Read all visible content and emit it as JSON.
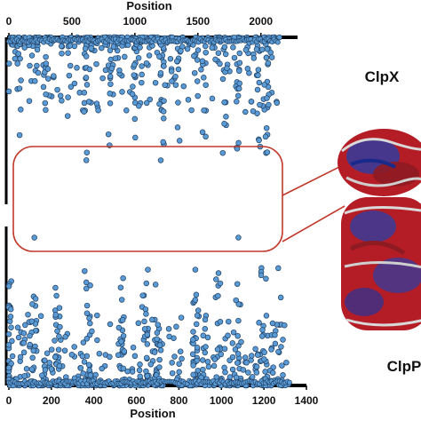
{
  "chart_data": [
    {
      "type": "scatter",
      "name_label": "ClpX",
      "xlabel": "Position",
      "xlim": [
        0,
        2150
      ],
      "xticks": [
        0,
        500,
        1000,
        1500,
        2000
      ],
      "ylim": [
        0,
        1
      ],
      "x_extent": [
        0,
        2150
      ],
      "point_color": "#5b9bd5",
      "n_points": 520,
      "seed": 11,
      "column_positions": [
        80,
        220,
        300,
        480,
        610,
        800,
        1000,
        1220,
        1350,
        1550,
        1710,
        1820,
        1980,
        2050
      ],
      "isolated_points": [
        {
          "x": 410,
          "y": 0.35
        },
        {
          "x": 1820,
          "y": 0.35
        }
      ]
    },
    {
      "type": "scatter",
      "name_label": "ClpP",
      "xlabel": "Position",
      "xlim": [
        0,
        1400
      ],
      "xticks": [
        0,
        200,
        400,
        600,
        800,
        1000,
        1200,
        1400
      ],
      "ylim": [
        0,
        1
      ],
      "x_extent": [
        0,
        1320
      ],
      "point_color": "#5b9bd5",
      "n_points": 620,
      "seed": 23,
      "column_positions": [
        0,
        120,
        230,
        370,
        530,
        640,
        700,
        880,
        980,
        1080,
        1200,
        1270
      ],
      "isolated_points": [
        {
          "x": 120,
          "y": 0.93
        },
        {
          "x": 1080,
          "y": 0.93
        }
      ]
    }
  ],
  "colors": {
    "points": "#5b9bd5",
    "point_edge": "#1f3f63",
    "callout": "#c0392b",
    "axis": "#000000"
  },
  "structure_image": {
    "icon": "protein-ribbon-structure",
    "colors": [
      "#c0202a",
      "#2a3fa8",
      "#d0d0d0"
    ]
  }
}
